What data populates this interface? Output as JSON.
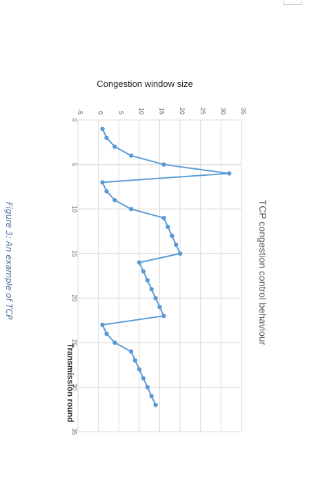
{
  "document": {
    "caption": "Figure 3: An example of TCP"
  },
  "chart_data": {
    "type": "line",
    "orientation": "rotated 90° clockwise",
    "title": "TCP congestion control behaviour",
    "xlabel": "Transmission round",
    "ylabel": "Congestion window size",
    "xlim": [
      0,
      35
    ],
    "ylim": [
      -5,
      35
    ],
    "x_ticks": [
      0,
      5,
      10,
      15,
      20,
      25,
      30,
      35
    ],
    "y_ticks": [
      -5,
      0,
      5,
      10,
      15,
      20,
      25,
      30,
      35
    ],
    "grid": true,
    "legend": "none",
    "color": "#5b9bd5",
    "series": [
      {
        "x": [
          1,
          2,
          3,
          4,
          5,
          6,
          7,
          8,
          9,
          10,
          11,
          12,
          13,
          14,
          15,
          16,
          17,
          18,
          19,
          20,
          21,
          22,
          23,
          24,
          25,
          26,
          27,
          28,
          29,
          30,
          31,
          32
        ],
        "values": [
          1,
          2,
          4,
          8,
          16,
          32,
          1,
          2,
          4,
          8,
          16,
          17,
          18,
          19,
          20,
          10,
          11,
          12,
          13,
          14,
          15,
          16,
          1,
          2,
          4,
          8,
          9,
          10,
          11,
          12,
          13,
          14
        ]
      }
    ]
  }
}
